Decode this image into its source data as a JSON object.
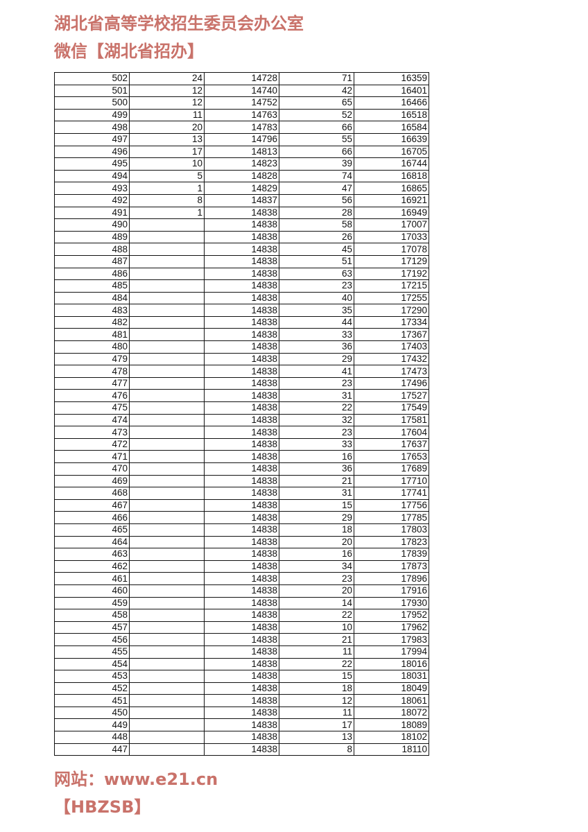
{
  "table": {
    "rows": [
      [
        "502",
        "24",
        "14728",
        "71",
        "16359"
      ],
      [
        "501",
        "12",
        "14740",
        "42",
        "16401"
      ],
      [
        "500",
        "12",
        "14752",
        "65",
        "16466"
      ],
      [
        "499",
        "11",
        "14763",
        "52",
        "16518"
      ],
      [
        "498",
        "20",
        "14783",
        "66",
        "16584"
      ],
      [
        "497",
        "13",
        "14796",
        "55",
        "16639"
      ],
      [
        "496",
        "17",
        "14813",
        "66",
        "16705"
      ],
      [
        "495",
        "10",
        "14823",
        "39",
        "16744"
      ],
      [
        "494",
        "5",
        "14828",
        "74",
        "16818"
      ],
      [
        "493",
        "1",
        "14829",
        "47",
        "16865"
      ],
      [
        "492",
        "8",
        "14837",
        "56",
        "16921"
      ],
      [
        "491",
        "1",
        "14838",
        "28",
        "16949"
      ],
      [
        "490",
        "",
        "14838",
        "58",
        "17007"
      ],
      [
        "489",
        "",
        "14838",
        "26",
        "17033"
      ],
      [
        "488",
        "",
        "14838",
        "45",
        "17078"
      ],
      [
        "487",
        "",
        "14838",
        "51",
        "17129"
      ],
      [
        "486",
        "",
        "14838",
        "63",
        "17192"
      ],
      [
        "485",
        "",
        "14838",
        "23",
        "17215"
      ],
      [
        "484",
        "",
        "14838",
        "40",
        "17255"
      ],
      [
        "483",
        "",
        "14838",
        "35",
        "17290"
      ],
      [
        "482",
        "",
        "14838",
        "44",
        "17334"
      ],
      [
        "481",
        "",
        "14838",
        "33",
        "17367"
      ],
      [
        "480",
        "",
        "14838",
        "36",
        "17403"
      ],
      [
        "479",
        "",
        "14838",
        "29",
        "17432"
      ],
      [
        "478",
        "",
        "14838",
        "41",
        "17473"
      ],
      [
        "477",
        "",
        "14838",
        "23",
        "17496"
      ],
      [
        "476",
        "",
        "14838",
        "31",
        "17527"
      ],
      [
        "475",
        "",
        "14838",
        "22",
        "17549"
      ],
      [
        "474",
        "",
        "14838",
        "32",
        "17581"
      ],
      [
        "473",
        "",
        "14838",
        "23",
        "17604"
      ],
      [
        "472",
        "",
        "14838",
        "33",
        "17637"
      ],
      [
        "471",
        "",
        "14838",
        "16",
        "17653"
      ],
      [
        "470",
        "",
        "14838",
        "36",
        "17689"
      ],
      [
        "469",
        "",
        "14838",
        "21",
        "17710"
      ],
      [
        "468",
        "",
        "14838",
        "31",
        "17741"
      ],
      [
        "467",
        "",
        "14838",
        "15",
        "17756"
      ],
      [
        "466",
        "",
        "14838",
        "29",
        "17785"
      ],
      [
        "465",
        "",
        "14838",
        "18",
        "17803"
      ],
      [
        "464",
        "",
        "14838",
        "20",
        "17823"
      ],
      [
        "463",
        "",
        "14838",
        "16",
        "17839"
      ],
      [
        "462",
        "",
        "14838",
        "34",
        "17873"
      ],
      [
        "461",
        "",
        "14838",
        "23",
        "17896"
      ],
      [
        "460",
        "",
        "14838",
        "20",
        "17916"
      ],
      [
        "459",
        "",
        "14838",
        "14",
        "17930"
      ],
      [
        "458",
        "",
        "14838",
        "22",
        "17952"
      ],
      [
        "457",
        "",
        "14838",
        "10",
        "17962"
      ],
      [
        "456",
        "",
        "14838",
        "21",
        "17983"
      ],
      [
        "455",
        "",
        "14838",
        "11",
        "17994"
      ],
      [
        "454",
        "",
        "14838",
        "22",
        "18016"
      ],
      [
        "453",
        "",
        "14838",
        "15",
        "18031"
      ],
      [
        "452",
        "",
        "14838",
        "18",
        "18049"
      ],
      [
        "451",
        "",
        "14838",
        "12",
        "18061"
      ],
      [
        "450",
        "",
        "14838",
        "11",
        "18072"
      ],
      [
        "449",
        "",
        "14838",
        "17",
        "18089"
      ],
      [
        "448",
        "",
        "14838",
        "13",
        "18102"
      ],
      [
        "447",
        "",
        "14838",
        "8",
        "18110"
      ]
    ]
  },
  "watermark": {
    "line1": "湖北省高等学校招生委员会办公室",
    "line2": "微信【湖北省招办】",
    "line3": "网站：www.e21.cn",
    "line4": "【HBZSB】",
    "color": "#c9726a"
  }
}
